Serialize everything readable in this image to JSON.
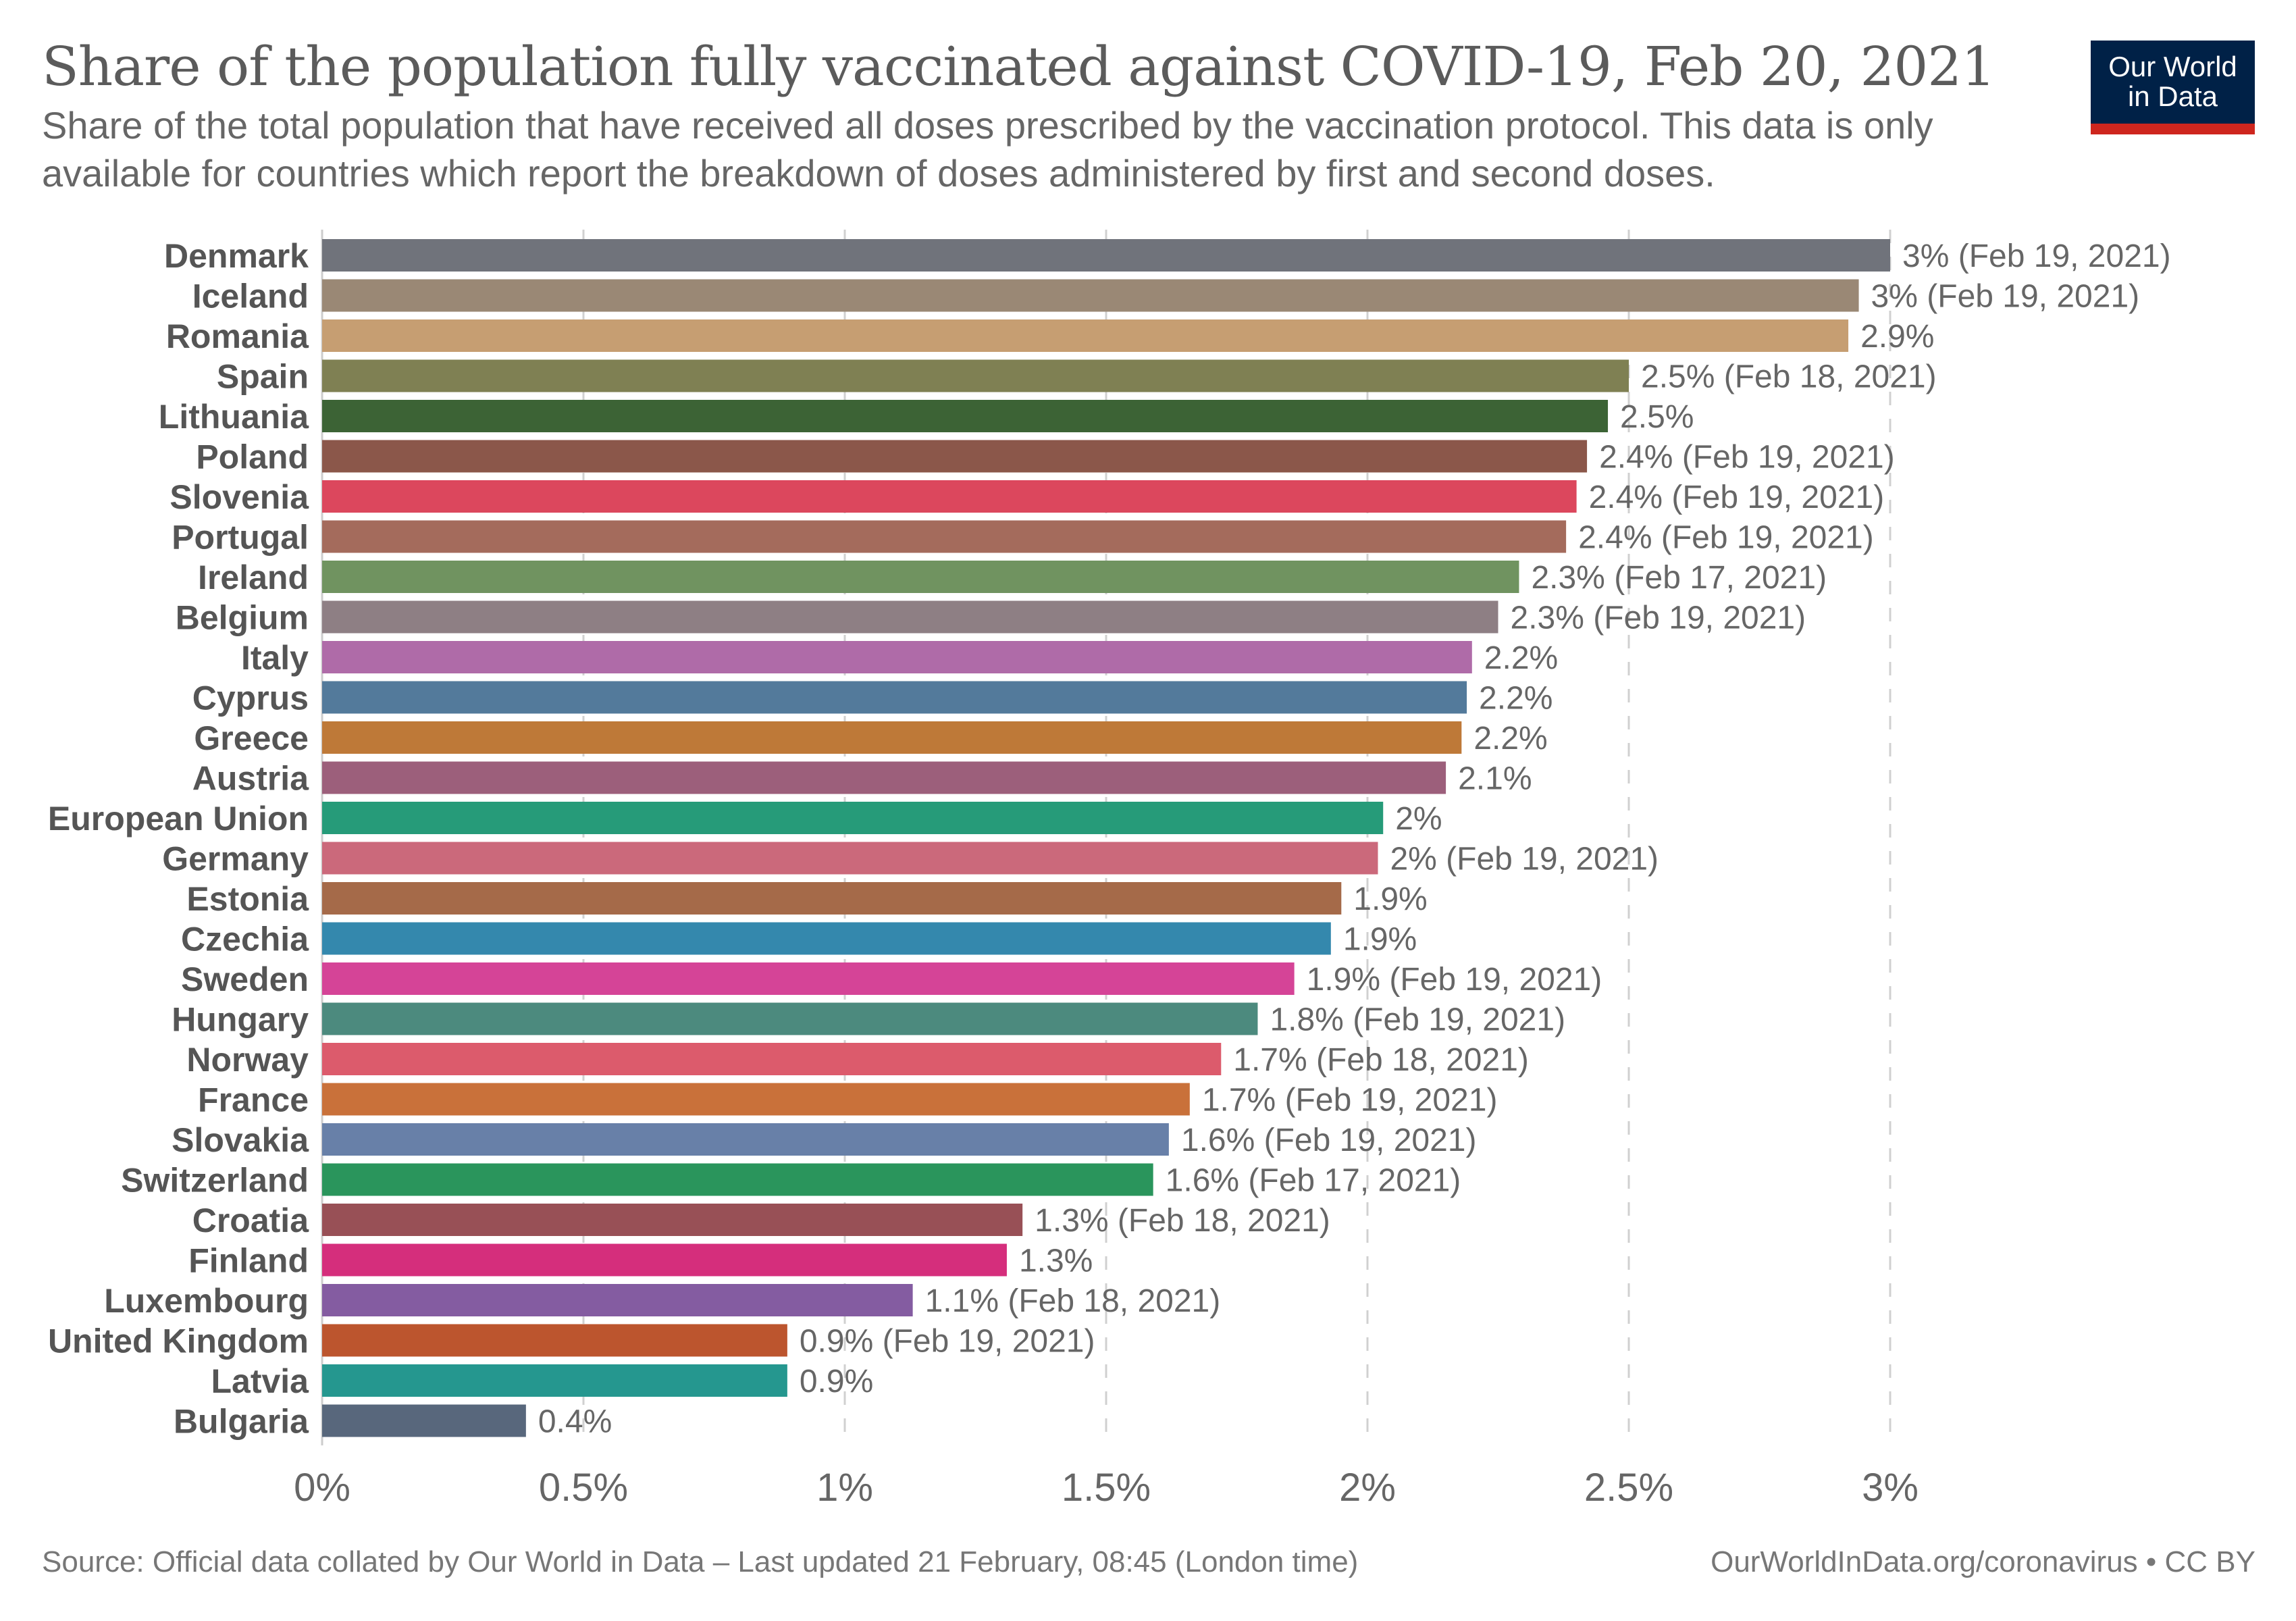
{
  "header": {
    "title": "Share of the population fully vaccinated against COVID-19, Feb 20, 2021",
    "subtitle": "Share of the total population that have received all doses prescribed by the vaccination protocol. This data is only available for countries which report the breakdown of doses administered by first and second doses.",
    "logo_line1": "Our World",
    "logo_line2": "in Data",
    "logo_colors": {
      "background": "#002147",
      "accent": "#ce261e"
    }
  },
  "footer": {
    "source": "Source: Official data collated by Our World in Data – Last updated 21 February, 08:45 (London time)",
    "credit": "OurWorldInData.org/coronavirus • CC BY"
  },
  "chart_data": {
    "type": "bar",
    "orientation": "horizontal",
    "title": "Share of the population fully vaccinated against COVID-19, Feb 20, 2021",
    "xlabel": "",
    "ylabel": "",
    "xlim": [
      0,
      3
    ],
    "grid": "vertical dashed",
    "x_ticks": [
      0,
      0.5,
      1,
      1.5,
      2,
      2.5,
      3
    ],
    "x_tick_labels": [
      "0%",
      "0.5%",
      "1%",
      "1.5%",
      "2%",
      "2.5%",
      "3%"
    ],
    "bars": [
      {
        "category": "Denmark",
        "value": 3.0,
        "label": "3% (Feb 19, 2021)",
        "color": "#70737b"
      },
      {
        "category": "Iceland",
        "value": 2.94,
        "label": "3% (Feb 19, 2021)",
        "color": "#9a8875"
      },
      {
        "category": "Romania",
        "value": 2.92,
        "label": "2.9%",
        "color": "#c69e72"
      },
      {
        "category": "Spain",
        "value": 2.5,
        "label": "2.5% (Feb 18, 2021)",
        "color": "#7f8053"
      },
      {
        "category": "Lithuania",
        "value": 2.46,
        "label": "2.5%",
        "color": "#3c6335"
      },
      {
        "category": "Poland",
        "value": 2.42,
        "label": "2.4% (Feb 19, 2021)",
        "color": "#8b574a"
      },
      {
        "category": "Slovenia",
        "value": 2.4,
        "label": "2.4% (Feb 19, 2021)",
        "color": "#dc475d"
      },
      {
        "category": "Portugal",
        "value": 2.38,
        "label": "2.4% (Feb 19, 2021)",
        "color": "#a46b5c"
      },
      {
        "category": "Ireland",
        "value": 2.29,
        "label": "2.3% (Feb 17, 2021)",
        "color": "#709360"
      },
      {
        "category": "Belgium",
        "value": 2.25,
        "label": "2.3% (Feb 19, 2021)",
        "color": "#8e7f84"
      },
      {
        "category": "Italy",
        "value": 2.2,
        "label": "2.2%",
        "color": "#af6ba8"
      },
      {
        "category": "Cyprus",
        "value": 2.19,
        "label": "2.2%",
        "color": "#537a9b"
      },
      {
        "category": "Greece",
        "value": 2.18,
        "label": "2.2%",
        "color": "#be7938"
      },
      {
        "category": "Austria",
        "value": 2.15,
        "label": "2.1%",
        "color": "#9c5f7b"
      },
      {
        "category": "European Union",
        "value": 2.03,
        "label": "2%",
        "color": "#269b79"
      },
      {
        "category": "Germany",
        "value": 2.02,
        "label": "2% (Feb 19, 2021)",
        "color": "#cb697b"
      },
      {
        "category": "Estonia",
        "value": 1.95,
        "label": "1.9%",
        "color": "#a56a49"
      },
      {
        "category": "Czechia",
        "value": 1.93,
        "label": "1.9%",
        "color": "#3488ad"
      },
      {
        "category": "Sweden",
        "value": 1.86,
        "label": "1.9% (Feb 19, 2021)",
        "color": "#d54497"
      },
      {
        "category": "Hungary",
        "value": 1.79,
        "label": "1.8% (Feb 19, 2021)",
        "color": "#4c8a7e"
      },
      {
        "category": "Norway",
        "value": 1.72,
        "label": "1.7% (Feb 18, 2021)",
        "color": "#dc5b6c"
      },
      {
        "category": "France",
        "value": 1.66,
        "label": "1.7% (Feb 19, 2021)",
        "color": "#c9713a"
      },
      {
        "category": "Slovakia",
        "value": 1.62,
        "label": "1.6% (Feb 19, 2021)",
        "color": "#6880a8"
      },
      {
        "category": "Switzerland",
        "value": 1.59,
        "label": "1.6% (Feb 17, 2021)",
        "color": "#2a955c"
      },
      {
        "category": "Croatia",
        "value": 1.34,
        "label": "1.3% (Feb 18, 2021)",
        "color": "#985056"
      },
      {
        "category": "Finland",
        "value": 1.31,
        "label": "1.3%",
        "color": "#d52e7c"
      },
      {
        "category": "Luxembourg",
        "value": 1.13,
        "label": "1.1% (Feb 18, 2021)",
        "color": "#845ca1"
      },
      {
        "category": "United Kingdom",
        "value": 0.89,
        "label": "0.9% (Feb 19, 2021)",
        "color": "#bc552e"
      },
      {
        "category": "Latvia",
        "value": 0.89,
        "label": "0.9%",
        "color": "#25978f"
      },
      {
        "category": "Bulgaria",
        "value": 0.39,
        "label": "0.4%",
        "color": "#58677c"
      }
    ]
  }
}
